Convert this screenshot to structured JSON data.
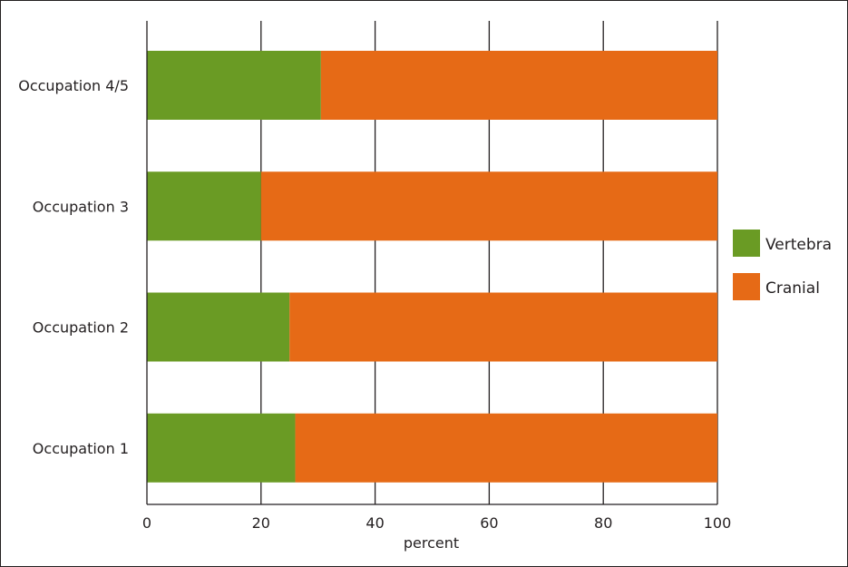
{
  "chart_data": {
    "type": "bar",
    "orientation": "horizontal",
    "stacked": true,
    "categories": [
      "Occupation 4/5",
      "Occupation 3",
      "Occupation 2",
      "Occupation 1"
    ],
    "series": [
      {
        "name": "Vertebra",
        "values": [
          30.5,
          20,
          25,
          26
        ],
        "color": "#6a9b24"
      },
      {
        "name": "Cranial",
        "values": [
          69.5,
          80,
          75,
          74
        ],
        "color": "#e66a16"
      }
    ],
    "xlabel": "percent",
    "ylabel": "",
    "xlim": [
      0,
      100
    ],
    "xticks": [
      0,
      20,
      40,
      60,
      80,
      100
    ],
    "grid": true,
    "legend": "right"
  }
}
